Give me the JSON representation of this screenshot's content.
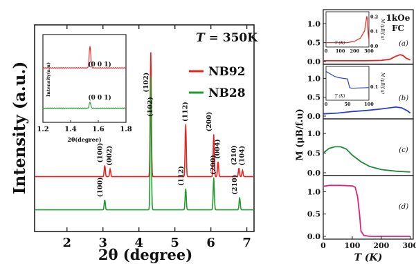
{
  "chart_data": [
    {
      "id": "xrd",
      "type": "line",
      "title": "T = 350K",
      "title_italic_part": "T",
      "title_rest": " = 350K",
      "xlabel": "2θ (degree)",
      "ylabel": "Intensity (a.u.)",
      "xlim": [
        1.1,
        7.2
      ],
      "xticks": [
        "2",
        "3",
        "4",
        "5",
        "6",
        "7"
      ],
      "xtick_values": [
        2,
        3,
        4,
        5,
        6,
        7
      ],
      "grid": false,
      "legend_position": "top-right",
      "series": [
        {
          "name": "NB92",
          "color": "#e8231f",
          "baseline": 0.55,
          "peaks": [
            {
              "x": 3.05,
              "h": 0.09,
              "label": "(100)"
            },
            {
              "x": 3.2,
              "h": 0.06,
              "label": "(002)"
            },
            {
              "x": 4.33,
              "h": 1.0,
              "label": "(102)"
            },
            {
              "x": 5.3,
              "h": 0.42,
              "label": "(112)"
            },
            {
              "x": 6.08,
              "h": 0.34,
              "label": "(200)"
            },
            {
              "x": 6.2,
              "h": 0.12,
              "label": "(004)"
            },
            {
              "x": 6.78,
              "h": 0.07,
              "label": "(210)"
            },
            {
              "x": 6.88,
              "h": 0.05,
              "label": "(104)"
            }
          ]
        },
        {
          "name": "NB28",
          "color": "#1f9a2e",
          "baseline": 0.12,
          "peaks": [
            {
              "x": 3.05,
              "h": 0.08,
              "label": "(100)"
            },
            {
              "x": 4.33,
              "h": 1.07,
              "label": "(102)"
            },
            {
              "x": 5.3,
              "h": 0.17,
              "label": "(112)"
            },
            {
              "x": 6.08,
              "h": 0.26,
              "label": "(200)"
            },
            {
              "x": 6.8,
              "h": 0.1,
              "label": "(210)"
            }
          ]
        }
      ],
      "inset": {
        "ylabel": "Intensity(a.u)",
        "xlabel": "2θ(degree)",
        "xlim": [
          1.2,
          1.8
        ],
        "xticks": [
          "1.2",
          "1.4",
          "1.6",
          "1.8"
        ],
        "xtick_values": [
          1.2,
          1.4,
          1.6,
          1.8
        ],
        "peak_label": "(0 0 1)",
        "series": [
          {
            "name": "NB92",
            "color": "#e8231f",
            "baseline": 0.62,
            "peak_x": 1.54,
            "peak_h": 0.25
          },
          {
            "name": "NB28",
            "color": "#1f9a2e",
            "baseline": 0.16,
            "peak_x": 1.54,
            "peak_h": 0.07
          }
        ]
      }
    },
    {
      "id": "magnetization",
      "type": "line",
      "annotation": "1kOe\nFC",
      "annotation_lines": [
        "1kOe",
        "FC"
      ],
      "ylabel": "M (μB/f.u)",
      "xlabel": "T (K)",
      "xlim": [
        0,
        310
      ],
      "xticks": [
        "0",
        "100",
        "200",
        "300"
      ],
      "xtick_values": [
        0,
        100,
        200,
        300
      ],
      "ylim": [
        0,
        1.3
      ],
      "yticks": [
        "0.0",
        "0.5",
        "1.0"
      ],
      "ytick_values": [
        0,
        0.5,
        1.0
      ],
      "panels": [
        {
          "label": "(a)",
          "color": "#e8231f",
          "x": [
            0,
            50,
            100,
            150,
            200,
            230,
            250,
            265,
            275,
            285,
            300
          ],
          "y": [
            0.02,
            0.02,
            0.02,
            0.02,
            0.03,
            0.06,
            0.14,
            0.18,
            0.16,
            0.09,
            0.04
          ],
          "inset": {
            "ylabel": "M (μB/f.u)",
            "xlabel": "T (K)",
            "xticks": [
              "0",
              "100",
              "200",
              "300"
            ],
            "xtick_values": [
              0,
              100,
              200,
              300
            ],
            "yticks": [
              "0.0",
              "0.1",
              "0.2"
            ],
            "ytick_values": [
              0,
              0.1,
              0.2
            ],
            "x": [
              0,
              50,
              100,
              150,
              200,
              240,
              270,
              285,
              290,
              295,
              310
            ],
            "y": [
              0.02,
              0.02,
              0.02,
              0.02,
              0.03,
              0.05,
              0.1,
              0.2,
              0.17,
              0.08,
              0.04
            ]
          }
        },
        {
          "label": "(b)",
          "color": "#2a3fc8",
          "x": [
            0,
            50,
            100,
            150,
            200,
            250,
            270,
            290,
            300
          ],
          "y": [
            0.06,
            0.08,
            0.12,
            0.15,
            0.19,
            0.24,
            0.22,
            0.14,
            0.08
          ],
          "inset": {
            "ylabel": "M (μB/f.u)",
            "xlabel": "T (K)",
            "xticks": [
              "0",
              "50",
              "100"
            ],
            "xtick_values": [
              0,
              50,
              100
            ],
            "yticks": [
              "0.1"
            ],
            "ytick_values": [
              0.1
            ],
            "x": [
              0,
              10,
              20,
              30,
              40,
              50,
              55,
              60,
              80,
              100
            ],
            "y": [
              0.22,
              0.2,
              0.18,
              0.17,
              0.165,
              0.16,
              0.09,
              0.085,
              0.088,
              0.09
            ]
          }
        },
        {
          "label": "(c)",
          "color": "#1f8a3a",
          "x": [
            0,
            20,
            40,
            60,
            80,
            100,
            130,
            160,
            200,
            250,
            300
          ],
          "y": [
            0.5,
            0.62,
            0.66,
            0.66,
            0.6,
            0.45,
            0.28,
            0.16,
            0.08,
            0.04,
            0.02
          ]
        },
        {
          "label": "(d)",
          "color": "#e0207f",
          "x": [
            0,
            20,
            60,
            100,
            110,
            118,
            125,
            130,
            140,
            160,
            200,
            300
          ],
          "y": [
            1.12,
            1.14,
            1.14,
            1.13,
            1.1,
            0.9,
            0.5,
            0.12,
            0.02,
            0.0,
            0.0,
            0.0
          ]
        }
      ]
    }
  ]
}
